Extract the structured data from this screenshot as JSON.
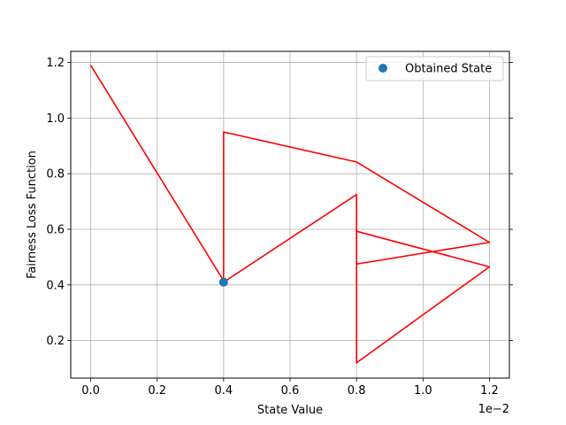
{
  "chart_data": {
    "type": "line",
    "xlabel": "State Value",
    "ylabel": "Fairness Loss Function",
    "x_offset_label": "1e−2",
    "xlim": [
      -0.0006,
      0.0126
    ],
    "ylim": [
      0.065,
      1.24
    ],
    "grid": true,
    "legend_position": "top-right",
    "x_ticks": [
      {
        "value": 0.0,
        "label": "0.0"
      },
      {
        "value": 0.002,
        "label": "0.2"
      },
      {
        "value": 0.004,
        "label": "0.4"
      },
      {
        "value": 0.006,
        "label": "0.6"
      },
      {
        "value": 0.008,
        "label": "0.8"
      },
      {
        "value": 0.01,
        "label": "1.0"
      },
      {
        "value": 0.012,
        "label": "1.2"
      }
    ],
    "y_ticks": [
      {
        "value": 0.2,
        "label": "0.2"
      },
      {
        "value": 0.4,
        "label": "0.4"
      },
      {
        "value": 0.6,
        "label": "0.6"
      },
      {
        "value": 0.8,
        "label": "0.8"
      },
      {
        "value": 1.0,
        "label": "1.0"
      },
      {
        "value": 1.2,
        "label": "1.2"
      }
    ],
    "series": [
      {
        "kind": "line",
        "color": "#ff0000",
        "points": [
          [
            0.0,
            1.19
          ],
          [
            0.004,
            0.415
          ],
          [
            0.004,
            0.95
          ],
          [
            0.008,
            0.842
          ],
          [
            0.012,
            0.553
          ],
          [
            0.008,
            0.475
          ],
          [
            0.008,
            0.593
          ],
          [
            0.012,
            0.465
          ],
          [
            0.008,
            0.12
          ],
          [
            0.008,
            0.725
          ],
          [
            0.004,
            0.41
          ]
        ]
      },
      {
        "kind": "scatter",
        "name": "Obtained State",
        "color": "#1f77b4",
        "points": [
          [
            0.004,
            0.41
          ]
        ]
      }
    ]
  }
}
